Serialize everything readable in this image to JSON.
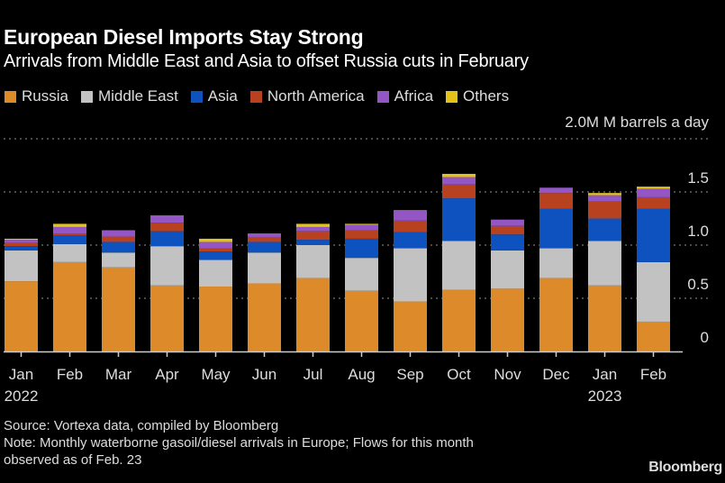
{
  "header": {
    "title": "European Diesel Imports Stay Strong",
    "subtitle": "Arrivals from Middle East and Asia to offset Russia cuts in February"
  },
  "footer": {
    "source": "Source: Vortexa data, compiled by Bloomberg",
    "note_line1": "Note: Monthly waterborne gasoil/diesel arrivals in Europe; Flows for this month",
    "note_line2": "observed as of Feb. 23",
    "brand": "Bloomberg"
  },
  "chart_data": {
    "type": "bar",
    "stacked": true,
    "title": "European Diesel Imports Stay Strong",
    "subtitle": "Arrivals from Middle East and Asia to offset Russia cuts in February",
    "unit_label": "M barrels a day",
    "xlabel": "",
    "ylabel": "M barrels a day",
    "ylim": [
      0,
      2.0
    ],
    "yticks": [
      0,
      0.5,
      1.0,
      1.5,
      2.0
    ],
    "ytick_labels": [
      "0",
      "0.5",
      "1.0",
      "1.5",
      "2.0M"
    ],
    "y_axis_position": "right",
    "grid": true,
    "legend_position": "top-left",
    "categories": [
      "Jan",
      "Feb",
      "Mar",
      "Apr",
      "May",
      "Jun",
      "Jul",
      "Aug",
      "Sep",
      "Oct",
      "Nov",
      "Dec",
      "Jan",
      "Feb"
    ],
    "year_labels": [
      {
        "index": 0,
        "label": "2022"
      },
      {
        "index": 12,
        "label": "2023"
      }
    ],
    "series": [
      {
        "name": "Russia",
        "color": "#dd8a2a",
        "values": [
          0.66,
          0.84,
          0.79,
          0.62,
          0.61,
          0.64,
          0.69,
          0.57,
          0.47,
          0.58,
          0.59,
          0.69,
          0.62,
          0.28
        ]
      },
      {
        "name": "Middle East",
        "color": "#c2c2c2",
        "values": [
          0.29,
          0.17,
          0.14,
          0.37,
          0.25,
          0.29,
          0.31,
          0.31,
          0.5,
          0.46,
          0.36,
          0.28,
          0.42,
          0.56
        ]
      },
      {
        "name": "Asia",
        "color": "#0d52bf",
        "values": [
          0.04,
          0.08,
          0.1,
          0.14,
          0.08,
          0.1,
          0.05,
          0.18,
          0.15,
          0.4,
          0.15,
          0.37,
          0.21,
          0.5
        ]
      },
      {
        "name": "North America",
        "color": "#b8411f",
        "values": [
          0.03,
          0.02,
          0.05,
          0.08,
          0.03,
          0.04,
          0.08,
          0.08,
          0.11,
          0.13,
          0.08,
          0.15,
          0.16,
          0.11
        ]
      },
      {
        "name": "Africa",
        "color": "#9356c4",
        "values": [
          0.03,
          0.06,
          0.06,
          0.07,
          0.06,
          0.04,
          0.04,
          0.05,
          0.1,
          0.07,
          0.06,
          0.05,
          0.06,
          0.08
        ]
      },
      {
        "name": "Others",
        "color": "#e3c21a",
        "values": [
          0.01,
          0.03,
          0.0,
          0.0,
          0.03,
          0.0,
          0.03,
          0.01,
          0.0,
          0.03,
          0.0,
          0.0,
          0.02,
          0.02
        ]
      }
    ]
  }
}
